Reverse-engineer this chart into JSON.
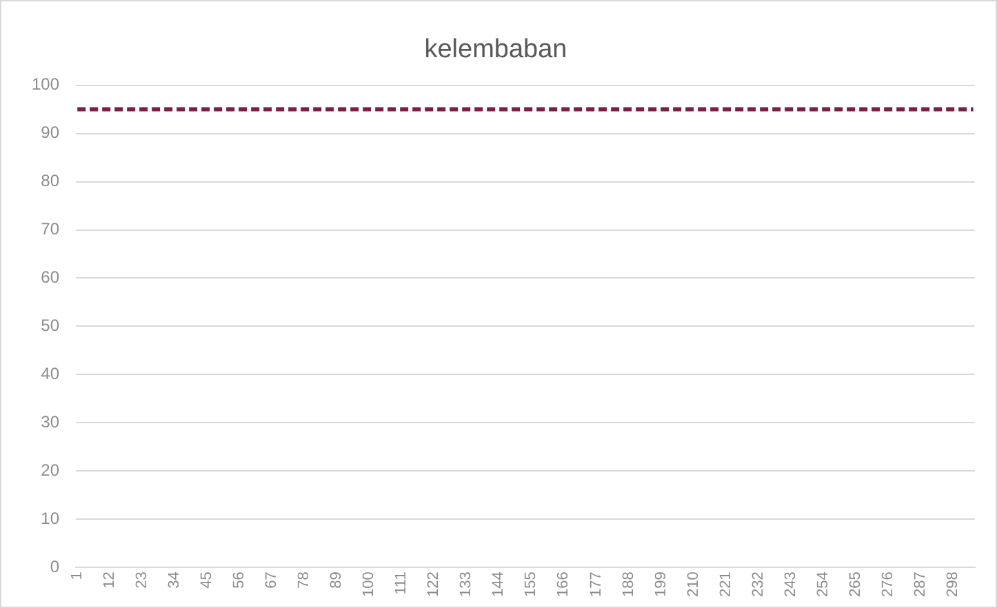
{
  "chart_data": {
    "type": "line",
    "title": "kelembaban",
    "categories": [
      "1",
      null,
      null,
      null,
      null,
      null,
      null,
      null,
      null,
      null,
      null,
      "12",
      null,
      null,
      null,
      null,
      null,
      null,
      null,
      null,
      null,
      null,
      "23",
      null,
      null,
      null,
      null,
      null,
      null,
      null,
      null,
      null,
      null,
      "34",
      null,
      null,
      null,
      null,
      null,
      null,
      null,
      null,
      null,
      null,
      "45",
      null,
      null,
      null,
      null,
      null,
      null,
      null,
      null,
      null,
      null,
      "56",
      null,
      null,
      null,
      null,
      null,
      null,
      null,
      null,
      null,
      null,
      "67",
      null,
      null,
      null,
      null,
      null,
      null,
      null,
      null,
      null,
      null,
      "78",
      null,
      null,
      null,
      null,
      null,
      null,
      null,
      null,
      null,
      null,
      "89",
      null,
      null,
      null,
      null,
      null,
      null,
      null,
      null,
      null,
      null,
      "100",
      null,
      null,
      null,
      null,
      null,
      null,
      null,
      null,
      null,
      null,
      "111",
      null,
      null,
      null,
      null,
      null,
      null,
      null,
      null,
      null,
      null,
      "122",
      null,
      null,
      null,
      null,
      null,
      null,
      null,
      null,
      null,
      null,
      "133",
      null,
      null,
      null,
      null,
      null,
      null,
      null,
      null,
      null,
      null,
      "144",
      null,
      null,
      null,
      null,
      null,
      null,
      null,
      null,
      null,
      null,
      "155",
      null,
      null,
      null,
      null,
      null,
      null,
      null,
      null,
      null,
      null,
      "166",
      null,
      null,
      null,
      null,
      null,
      null,
      null,
      null,
      null,
      null,
      "177",
      null,
      null,
      null,
      null,
      null,
      null,
      null,
      null,
      null,
      null,
      "188",
      null,
      null,
      null,
      null,
      null,
      null,
      null,
      null,
      null,
      null,
      "199",
      null,
      null,
      null,
      null,
      null,
      null,
      null,
      null,
      null,
      null,
      "210",
      null,
      null,
      null,
      null,
      null,
      null,
      null,
      null,
      null,
      null,
      "221",
      null,
      null,
      null,
      null,
      null,
      null,
      null,
      null,
      null,
      null,
      "232",
      null,
      null,
      null,
      null,
      null,
      null,
      null,
      null,
      null,
      null,
      "243",
      null,
      null,
      null,
      null,
      null,
      null,
      null,
      null,
      null,
      null,
      "254",
      null,
      null,
      null,
      null,
      null,
      null,
      null,
      null,
      null,
      null,
      "265",
      null,
      null,
      null,
      null,
      null,
      null,
      null,
      null,
      null,
      null,
      "276",
      null,
      null,
      null,
      null,
      null,
      null,
      null,
      null,
      null,
      null,
      "287",
      null,
      null,
      null,
      null,
      null,
      null,
      null,
      null,
      null,
      null,
      "298",
      null,
      null,
      null,
      null,
      null,
      null,
      null
    ],
    "series": [
      {
        "color": "#7b1f45",
        "values": [
          95,
          95,
          95,
          95,
          95,
          95,
          95,
          95,
          95,
          95,
          95,
          95,
          95,
          95,
          95,
          95,
          95,
          95,
          95,
          95,
          95,
          95,
          95,
          95,
          95,
          95,
          95,
          95,
          95,
          95,
          95,
          95,
          95,
          95,
          95,
          95,
          95,
          95,
          95,
          95,
          95,
          95,
          95,
          95,
          95,
          95,
          95,
          95,
          95,
          95,
          95,
          95,
          95,
          95,
          95,
          95,
          95,
          95,
          95,
          95,
          95,
          95,
          95,
          95,
          95,
          95,
          95,
          95,
          95,
          95,
          95,
          95,
          95,
          95,
          95,
          95,
          95,
          95,
          95,
          95,
          95,
          95,
          95,
          95,
          95,
          95,
          95,
          95,
          95,
          95,
          95,
          95,
          95,
          95,
          95,
          95,
          95,
          95,
          95,
          95,
          95,
          95,
          95,
          95,
          95,
          95,
          95,
          95,
          95,
          95,
          95,
          95,
          95,
          95,
          95,
          95,
          95,
          95,
          95,
          95,
          95,
          95,
          95,
          95,
          95,
          95,
          95,
          95,
          95,
          95,
          95,
          95,
          95,
          95,
          95,
          95,
          95,
          95,
          95,
          95,
          95,
          95,
          95,
          95,
          95,
          95,
          95,
          95,
          95,
          95,
          95,
          95,
          95,
          95,
          95,
          95,
          95,
          95,
          95,
          95,
          95,
          95,
          95,
          95,
          95,
          95,
          95,
          95,
          95,
          95,
          95,
          95,
          95,
          95,
          95,
          95,
          95,
          95,
          95,
          95,
          95,
          95,
          95,
          95,
          95,
          95,
          95,
          95,
          95,
          95,
          95,
          95,
          95,
          95,
          95,
          95,
          95,
          95,
          95,
          95,
          95,
          95,
          95,
          95,
          95,
          95,
          95,
          95,
          95,
          95,
          95,
          95,
          95,
          95,
          95,
          95,
          95,
          95,
          95,
          95,
          95,
          95,
          95,
          95,
          95,
          95,
          95,
          95,
          95,
          95,
          95,
          95,
          95,
          95,
          95,
          95,
          95,
          95,
          95,
          95,
          95,
          95,
          95,
          95,
          95,
          95,
          95,
          95,
          95,
          95,
          95,
          95,
          95,
          95,
          95,
          95,
          95,
          95,
          95,
          95,
          95,
          95,
          95,
          95,
          95,
          95,
          95,
          95,
          95,
          95,
          95,
          95,
          95,
          95,
          95,
          95,
          95,
          95,
          95,
          95,
          95,
          95,
          95,
          95,
          95,
          95,
          95,
          95,
          95,
          95,
          95,
          95,
          95,
          95,
          95,
          95,
          95,
          95,
          95,
          95,
          95,
          95,
          95,
          95,
          95
        ]
      }
    ],
    "ylim": [
      0,
      100
    ],
    "yticks": [
      0,
      10,
      20,
      30,
      40,
      50,
      60,
      70,
      80,
      90,
      100
    ],
    "grid": "y",
    "marker": "none",
    "line_style": "dashed"
  }
}
